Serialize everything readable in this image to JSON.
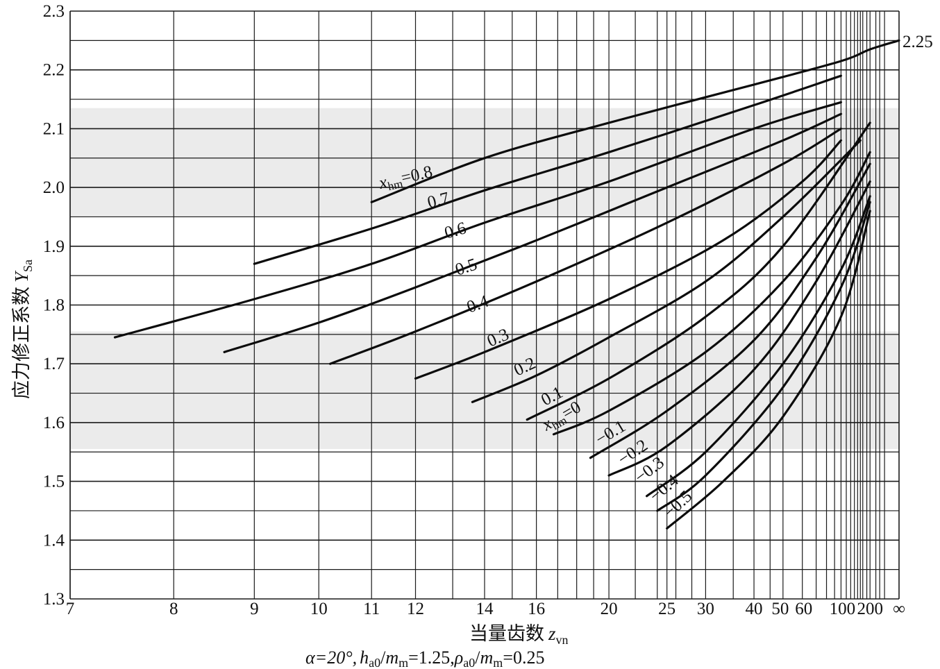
{
  "chart_data": {
    "type": "line",
    "title": "",
    "xlabel_main": "当量齿数",
    "xlabel_var": "z",
    "xlabel_sub": "vn",
    "ylabel_main": "应力修正系数",
    "ylabel_var": "Y",
    "ylabel_sub": "Sa",
    "caption": {
      "alpha": "α=20°,",
      "h": "h",
      "h_sub": "a0",
      "mid1": "/",
      "m": "m",
      "m_sub": "m",
      "eq1": "=1.25,",
      "rho": "ρ",
      "rho_sub": "a0",
      "mid2": "/",
      "m2": "m",
      "m2_sub": "m",
      "eq2": "=0.25"
    },
    "x_scale": "reciprocal (1/z), ∞ at right end",
    "x_ticks": [
      "7",
      "8",
      "9",
      "10",
      "11",
      "12",
      "14",
      "16",
      "20",
      "25",
      "30",
      "40",
      "50",
      "60",
      "100",
      "200",
      "∞"
    ],
    "x_tick_values": [
      7,
      8,
      9,
      10,
      11,
      12,
      14,
      16,
      20,
      25,
      30,
      40,
      50,
      60,
      100,
      200,
      "inf"
    ],
    "y_ticks": [
      "1.3",
      "1.4",
      "1.5",
      "1.6",
      "1.7",
      "1.8",
      "1.9",
      "2.0",
      "2.1",
      "2.2",
      "2.3"
    ],
    "ylim": [
      1.3,
      2.3
    ],
    "grid": true,
    "annotation_right": "2.25",
    "series": [
      {
        "label": "x",
        "label_sub": "hm",
        "label_tail": "=0.8",
        "points": [
          [
            11,
            1.975
          ],
          [
            14,
            2.05
          ],
          [
            20,
            2.11
          ],
          [
            40,
            2.175
          ],
          [
            100,
            2.215
          ],
          [
            200,
            2.235
          ],
          [
            "inf",
            2.25
          ]
        ]
      },
      {
        "label": "0.7",
        "points": [
          [
            9,
            1.87
          ],
          [
            11,
            1.93
          ],
          [
            14,
            1.995
          ],
          [
            20,
            2.06
          ],
          [
            40,
            2.14
          ],
          [
            100,
            2.19
          ]
        ]
      },
      {
        "label": "0.6",
        "points": [
          [
            7.4,
            1.745
          ],
          [
            9,
            1.81
          ],
          [
            11,
            1.87
          ],
          [
            14,
            1.94
          ],
          [
            20,
            2.01
          ],
          [
            40,
            2.1
          ],
          [
            100,
            2.145
          ]
        ]
      },
      {
        "label": "0.5",
        "points": [
          [
            8.6,
            1.72
          ],
          [
            10,
            1.77
          ],
          [
            12,
            1.83
          ],
          [
            16,
            1.91
          ],
          [
            25,
            2.0
          ],
          [
            50,
            2.08
          ],
          [
            100,
            2.125
          ]
        ]
      },
      {
        "label": "0.4",
        "points": [
          [
            10.2,
            1.7
          ],
          [
            12,
            1.755
          ],
          [
            16,
            1.84
          ],
          [
            25,
            1.94
          ],
          [
            50,
            2.04
          ],
          [
            100,
            2.1
          ]
        ]
      },
      {
        "label": "0.3",
        "points": [
          [
            12,
            1.675
          ],
          [
            14,
            1.72
          ],
          [
            20,
            1.81
          ],
          [
            33,
            1.91
          ],
          [
            60,
            2.01
          ],
          [
            100,
            2.08
          ]
        ]
      },
      {
        "label": "0.2",
        "points": [
          [
            13.6,
            1.635
          ],
          [
            16,
            1.68
          ],
          [
            20,
            1.745
          ],
          [
            30,
            1.84
          ],
          [
            50,
            1.95
          ],
          [
            150,
            2.08
          ]
        ]
      },
      {
        "label": "0.1",
        "points": [
          [
            15.6,
            1.605
          ],
          [
            20,
            1.675
          ],
          [
            30,
            1.78
          ],
          [
            50,
            1.9
          ],
          [
            200,
            2.11
          ]
        ]
      },
      {
        "label": "x",
        "label_sub": "hm",
        "label_tail": "=0",
        "points": [
          [
            16.8,
            1.58
          ],
          [
            20,
            1.62
          ],
          [
            30,
            1.72
          ],
          [
            50,
            1.84
          ],
          [
            100,
            1.97
          ],
          [
            200,
            2.06
          ]
        ]
      },
      {
        "label": "−0.1",
        "points": [
          [
            18.8,
            1.54
          ],
          [
            25,
            1.62
          ],
          [
            40,
            1.74
          ],
          [
            70,
            1.88
          ],
          [
            200,
            2.04
          ]
        ]
      },
      {
        "label": "−0.2",
        "points": [
          [
            20,
            1.51
          ],
          [
            25,
            1.56
          ],
          [
            40,
            1.69
          ],
          [
            70,
            1.84
          ],
          [
            200,
            2.01
          ]
        ]
      },
      {
        "label": "−0.3",
        "points": [
          [
            23,
            1.475
          ],
          [
            30,
            1.55
          ],
          [
            50,
            1.7
          ],
          [
            100,
            1.86
          ],
          [
            200,
            1.985
          ]
        ]
      },
      {
        "label": "−0.4",
        "points": [
          [
            24,
            1.45
          ],
          [
            30,
            1.51
          ],
          [
            50,
            1.66
          ],
          [
            100,
            1.83
          ],
          [
            200,
            1.975
          ]
        ]
      },
      {
        "label": "−0.5",
        "points": [
          [
            25,
            1.42
          ],
          [
            33,
            1.5
          ],
          [
            50,
            1.61
          ],
          [
            100,
            1.78
          ],
          [
            200,
            1.96
          ]
        ]
      }
    ]
  }
}
